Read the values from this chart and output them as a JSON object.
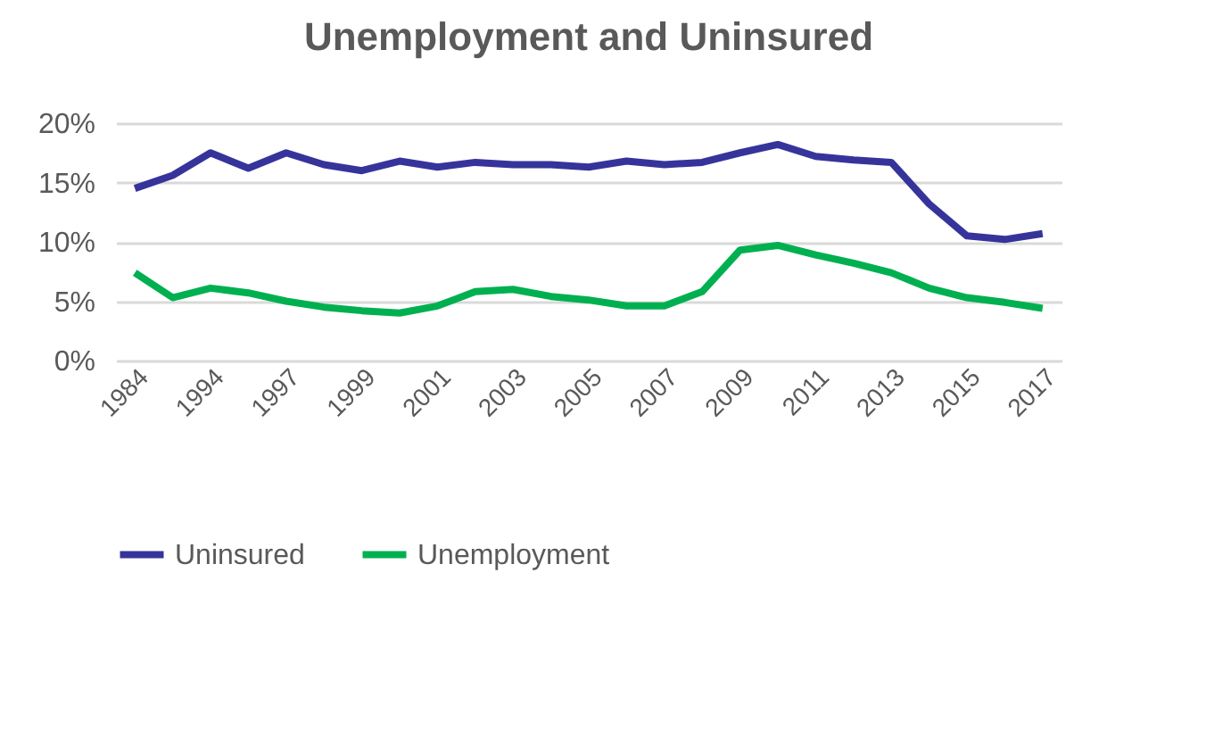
{
  "chart_data": {
    "type": "line",
    "title": "Unemployment and Uninsured",
    "categories": [
      "1984",
      null,
      "1994",
      null,
      "1997",
      null,
      "1999",
      null,
      "2001",
      null,
      "2003",
      null,
      "2005",
      null,
      "2007",
      null,
      "2009",
      null,
      "2011",
      null,
      "2013",
      null,
      "2015",
      null,
      "2017"
    ],
    "series": [
      {
        "name": "Uninsured",
        "color": "#36349b",
        "values": [
          14.5,
          15.6,
          17.5,
          16.2,
          17.5,
          16.5,
          16.0,
          16.8,
          16.3,
          16.7,
          16.5,
          16.5,
          16.3,
          16.8,
          16.5,
          16.7,
          17.5,
          18.2,
          17.2,
          16.9,
          16.7,
          13.2,
          10.5,
          10.2,
          10.7
        ]
      },
      {
        "name": "Unemployment",
        "color": "#00b050",
        "values": [
          7.4,
          5.3,
          6.1,
          5.7,
          5.0,
          4.5,
          4.2,
          4.0,
          4.6,
          5.8,
          6.0,
          5.4,
          5.1,
          4.6,
          4.6,
          5.8,
          9.3,
          9.7,
          8.9,
          8.2,
          7.4,
          6.1,
          5.3,
          4.9,
          4.4
        ]
      }
    ],
    "ylim": [
      0,
      20
    ],
    "yticks": [
      {
        "value": 0,
        "label": "0%"
      },
      {
        "value": 5,
        "label": "5%"
      },
      {
        "value": 10,
        "label": "10%"
      },
      {
        "value": 15,
        "label": "15%"
      },
      {
        "value": 20,
        "label": "20%"
      }
    ],
    "grid": "y",
    "legend": "bottom",
    "marker": "none",
    "line_style": "solid"
  }
}
